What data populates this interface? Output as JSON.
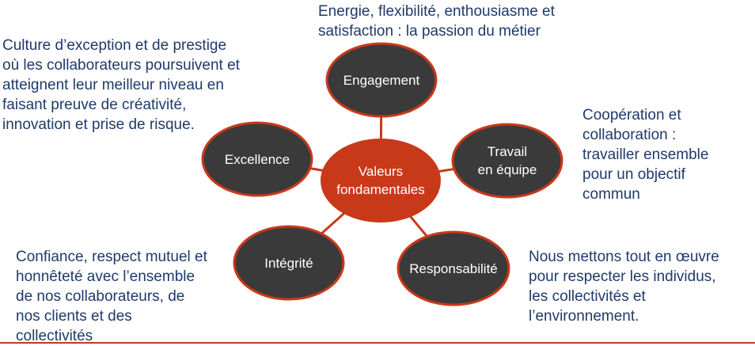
{
  "center": {
    "label": "Valeurs\nfondamentales",
    "fill": "#c8391a"
  },
  "node_fill": "#3a3a3a",
  "node_stroke": "#c8391a",
  "connector_color": "#c8391a",
  "nodes": [
    {
      "id": "engagement",
      "label": "Engagement",
      "description": "Energie, flexibilité, enthousiasme et\nsatisfaction : la passion du métier"
    },
    {
      "id": "travail",
      "label": "Travail\nen équipe",
      "description": "Coopération et\ncollaboration :\ntravailler ensemble\npour un objectif\ncommun"
    },
    {
      "id": "responsabilite",
      "label": "Responsabilité",
      "description": "Nous mettons tout en œuvre\npour respecter les individus,\nles collectivités et\nl’environnement."
    },
    {
      "id": "integrite",
      "label": "Intégrité",
      "description": "Confiance, respect mutuel et\nhonnêteté avec l’ensemble\nde nos collaborateurs, de\nnos clients et des\ncollectivités"
    },
    {
      "id": "excellence",
      "label": "Excellence",
      "description": "Culture d’exception et de prestige\noù les collaborateurs poursuivent et\natteignent leur meilleur niveau en\nfaisant preuve de créativité,\ninnovation et prise de risque."
    }
  ]
}
